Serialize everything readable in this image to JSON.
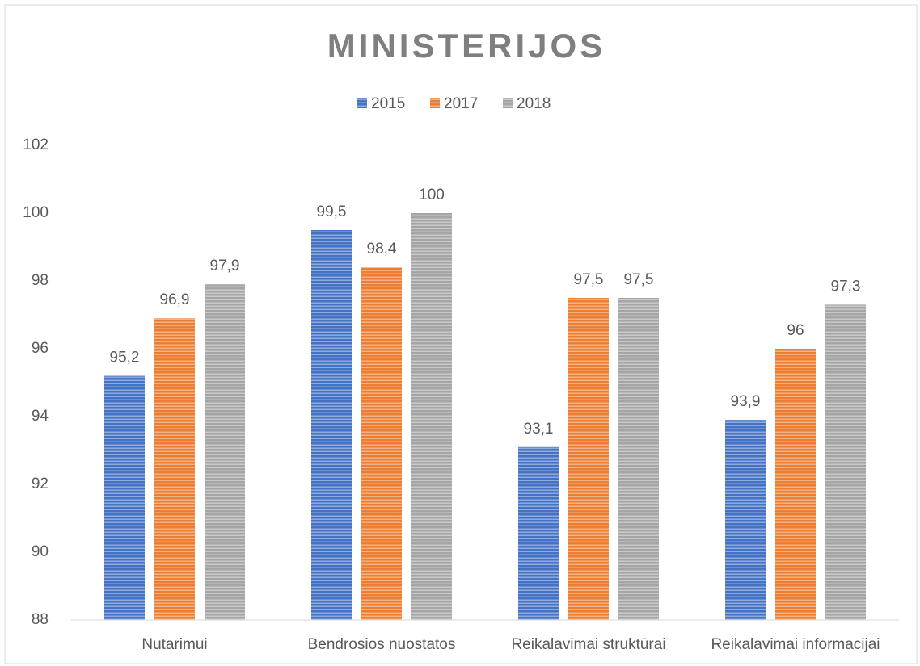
{
  "chart_data": {
    "type": "bar",
    "title": "MINISTERIJOS",
    "categories": [
      "Nutarimui",
      "Bendrosios nuostatos",
      "Reikalavimai struktūrai",
      "Reikalavimai informacijai"
    ],
    "series": [
      {
        "name": "2015",
        "color": "#4472c4",
        "values": [
          95.2,
          99.5,
          93.1,
          93.9
        ],
        "value_labels": [
          "95,2",
          "99,5",
          "93,1",
          "93,9"
        ]
      },
      {
        "name": "2017",
        "color": "#ed7d31",
        "values": [
          96.9,
          98.4,
          97.5,
          96
        ],
        "value_labels": [
          "96,9",
          "98,4",
          "97,5",
          "96"
        ]
      },
      {
        "name": "2018",
        "color": "#a5a5a5",
        "values": [
          97.9,
          100,
          97.5,
          97.3
        ],
        "value_labels": [
          "97,9",
          "100",
          "97,5",
          "97,3"
        ]
      }
    ],
    "ylim": [
      88,
      102
    ],
    "yticks": [
      88,
      90,
      92,
      94,
      96,
      98,
      100,
      102
    ],
    "grid": false,
    "legend": "top"
  }
}
